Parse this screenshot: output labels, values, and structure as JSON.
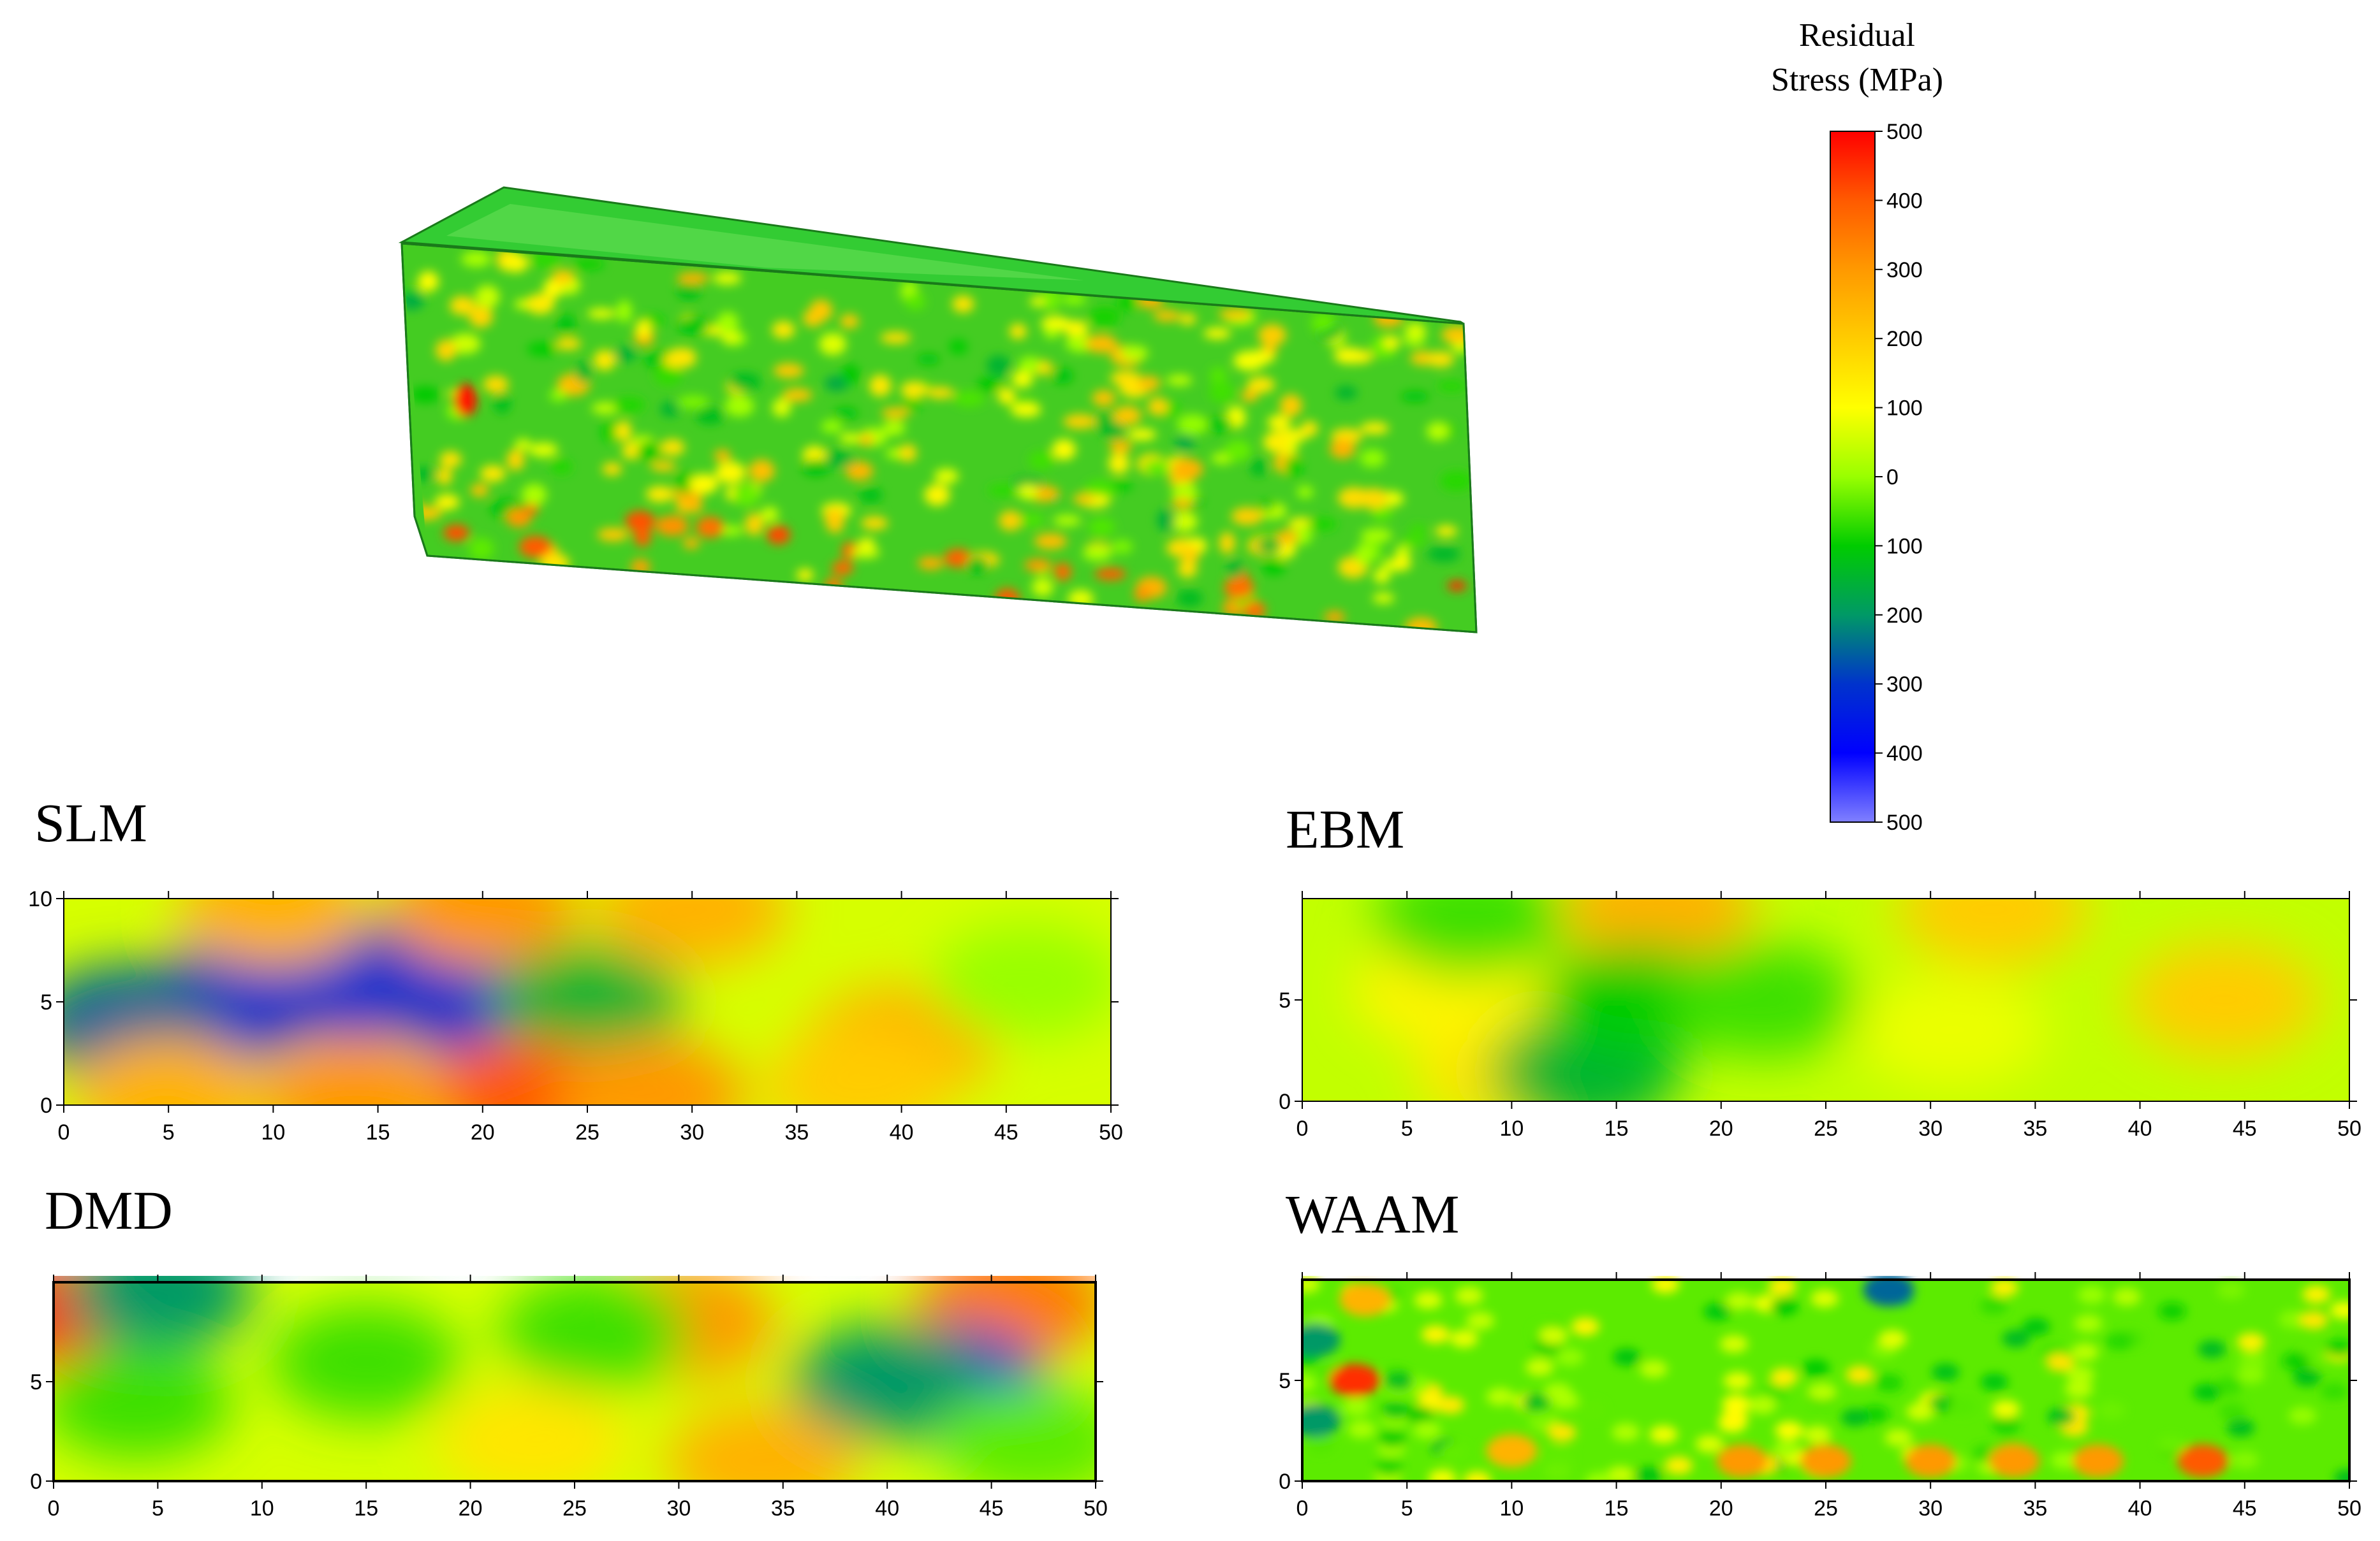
{
  "colorbar": {
    "title_line1": "Residual",
    "title_line2": "Stress (MPa)",
    "tick_labels": [
      "500",
      "400",
      "300",
      "200",
      "100",
      "0",
      "100",
      "200",
      "300",
      "400",
      "500"
    ],
    "tick_values": [
      500,
      400,
      300,
      200,
      100,
      0,
      -100,
      -200,
      -300,
      -400,
      -500
    ],
    "colors": [
      "#ff0000",
      "#ff5a00",
      "#ff9900",
      "#ffcc00",
      "#ffff00",
      "#99ff00",
      "#00cc00",
      "#009966",
      "#0033cc",
      "#0000ff",
      "#8080ff"
    ]
  },
  "chart_data": [
    {
      "type": "heatmap",
      "title": "SLM",
      "xlim": [
        0,
        50
      ],
      "ylim": [
        0,
        10
      ],
      "x_ticks": [
        "0",
        "5",
        "10",
        "15",
        "20",
        "25",
        "30",
        "35",
        "40",
        "45",
        "50"
      ],
      "y_ticks": [
        "0",
        "5",
        "10"
      ],
      "hotspots": [
        {
          "x": 8,
          "y": 5,
          "stress": -300
        },
        {
          "x": 14,
          "y": 6,
          "stress": -300
        },
        {
          "x": 20,
          "y": 5,
          "stress": -300
        },
        {
          "x": 3,
          "y": 4,
          "stress": -250
        },
        {
          "x": 25,
          "y": 5,
          "stress": -150
        },
        {
          "x": 22,
          "y": 0.5,
          "stress": 400
        },
        {
          "x": 14,
          "y": 0.5,
          "stress": 300
        },
        {
          "x": 28,
          "y": 0.5,
          "stress": 300
        },
        {
          "x": 5,
          "y": 0.5,
          "stress": 250
        },
        {
          "x": 20,
          "y": 9.5,
          "stress": 300
        },
        {
          "x": 10,
          "y": 9.5,
          "stress": 250
        },
        {
          "x": 30,
          "y": 9.5,
          "stress": 250
        },
        {
          "x": 40,
          "y": 3,
          "stress": 250
        },
        {
          "x": 38,
          "y": 1,
          "stress": 200
        },
        {
          "x": 46,
          "y": 6,
          "stress": 0
        }
      ]
    },
    {
      "type": "heatmap",
      "title": "EBM",
      "xlim": [
        0,
        50
      ],
      "ylim": [
        0,
        10
      ],
      "x_ticks": [
        "0",
        "5",
        "10",
        "15",
        "20",
        "25",
        "30",
        "35",
        "40",
        "45",
        "50"
      ],
      "y_ticks": [
        "0",
        "5"
      ],
      "hotspots": [
        {
          "x": 17,
          "y": 9.5,
          "stress": 250
        },
        {
          "x": 33,
          "y": 9.5,
          "stress": 200
        },
        {
          "x": 44,
          "y": 5,
          "stress": 200
        },
        {
          "x": 10,
          "y": 1.5,
          "stress": 150
        },
        {
          "x": 7,
          "y": 5.5,
          "stress": 120
        },
        {
          "x": 13.5,
          "y": 1.5,
          "stress": -150
        },
        {
          "x": 16,
          "y": 5,
          "stress": -100
        },
        {
          "x": 22,
          "y": 5,
          "stress": -60
        },
        {
          "x": 31,
          "y": 3.5,
          "stress": 80
        },
        {
          "x": 8,
          "y": 9,
          "stress": -60
        }
      ]
    },
    {
      "type": "heatmap",
      "title": "DMD",
      "xlim": [
        0,
        50
      ],
      "ylim": [
        0,
        10
      ],
      "x_ticks": [
        "0",
        "5",
        "10",
        "15",
        "20",
        "25",
        "30",
        "35",
        "40",
        "45",
        "50"
      ],
      "y_ticks": [
        "0",
        "5"
      ],
      "hotspots": [
        {
          "x": 1,
          "y": 8.5,
          "stress": 450
        },
        {
          "x": 5,
          "y": 9.5,
          "stress": -200
        },
        {
          "x": 30,
          "y": 8,
          "stress": 300
        },
        {
          "x": 46,
          "y": 9,
          "stress": 350
        },
        {
          "x": 34,
          "y": 1,
          "stress": 250
        },
        {
          "x": 23,
          "y": 2,
          "stress": 150
        },
        {
          "x": 43,
          "y": 5,
          "stress": -300
        },
        {
          "x": 40,
          "y": 5,
          "stress": -200
        },
        {
          "x": 15,
          "y": 6,
          "stress": -60
        },
        {
          "x": 4,
          "y": 4,
          "stress": -60
        },
        {
          "x": 26,
          "y": 7.5,
          "stress": -60
        },
        {
          "x": 47,
          "y": 2,
          "stress": -40
        }
      ]
    },
    {
      "type": "heatmap",
      "title": "WAAM",
      "xlim": [
        0,
        50
      ],
      "ylim": [
        0,
        10
      ],
      "x_ticks": [
        "0",
        "5",
        "10",
        "15",
        "20",
        "25",
        "30",
        "35",
        "40",
        "45",
        "50"
      ],
      "y_ticks": [
        "0",
        "5"
      ],
      "background_stress": -40,
      "hotspots": [
        {
          "x": 2.5,
          "y": 5,
          "stress": 450
        },
        {
          "x": 0.6,
          "y": 7,
          "stress": -200
        },
        {
          "x": 0.6,
          "y": 3,
          "stress": -200
        },
        {
          "x": 3,
          "y": 9,
          "stress": 250
        },
        {
          "x": 21,
          "y": 1,
          "stress": 300
        },
        {
          "x": 25,
          "y": 1,
          "stress": 300
        },
        {
          "x": 30,
          "y": 1,
          "stress": 300
        },
        {
          "x": 34,
          "y": 1,
          "stress": 300
        },
        {
          "x": 38,
          "y": 1,
          "stress": 300
        },
        {
          "x": 43,
          "y": 1,
          "stress": 400
        },
        {
          "x": 10,
          "y": 1.5,
          "stress": 250
        },
        {
          "x": 28,
          "y": 9.5,
          "stress": -250
        }
      ]
    }
  ],
  "model_3d": {
    "label": ""
  }
}
